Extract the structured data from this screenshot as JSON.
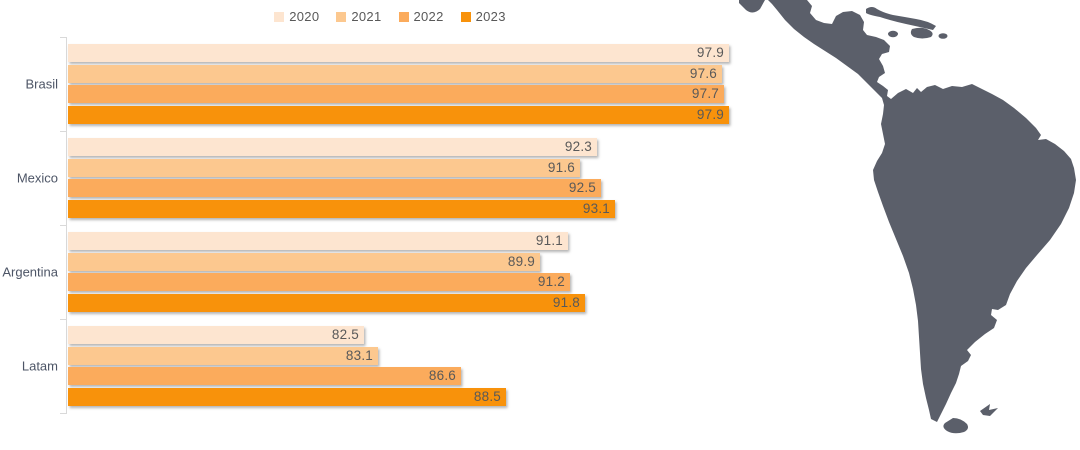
{
  "chart_data": {
    "type": "bar",
    "orientation": "horizontal",
    "title": "",
    "xlabel": "",
    "ylabel": "",
    "grid": false,
    "legend_position": "top",
    "value_labels": true,
    "value_label_decimals": 1,
    "xlim": [
      70,
      100
    ],
    "categories": [
      "Brasil",
      "Mexico",
      "Argentina",
      "Latam"
    ],
    "series": [
      {
        "name": "2020",
        "color": "#fde5d0",
        "values": [
          97.9,
          92.3,
          91.1,
          82.5
        ]
      },
      {
        "name": "2021",
        "color": "#fcc88f",
        "values": [
          97.6,
          91.6,
          89.9,
          83.1
        ]
      },
      {
        "name": "2022",
        "color": "#fbab5c",
        "values": [
          97.7,
          92.5,
          91.2,
          86.6
        ]
      },
      {
        "name": "2023",
        "color": "#f8920b",
        "values": [
          97.9,
          93.1,
          91.8,
          88.5
        ]
      }
    ]
  },
  "colors": {
    "value_label_text": "#595959",
    "category_label_text": "#4d5566",
    "legend_text": "#595959",
    "axis_line": "#d9d9d9",
    "map_fill": "#5b5f6a",
    "background": "#ffffff"
  },
  "map": {
    "name": "latin-america-silhouette"
  }
}
